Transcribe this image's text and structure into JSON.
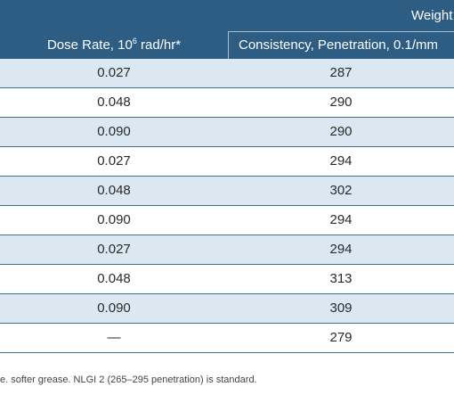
{
  "header": {
    "group_label": "Weight",
    "dose_label": "Dose Rate, 10",
    "dose_exponent": "6",
    "dose_unit": " rad/hr*",
    "consistency_label": "Consistency, Penetration, 0.1/mm"
  },
  "rows": [
    {
      "dose": "0.027",
      "penetration": "287"
    },
    {
      "dose": "0.048",
      "penetration": "290"
    },
    {
      "dose": "0.090",
      "penetration": "290"
    },
    {
      "dose": "0.027",
      "penetration": "294"
    },
    {
      "dose": "0.048",
      "penetration": "302"
    },
    {
      "dose": "0.090",
      "penetration": "294"
    },
    {
      "dose": "0.027",
      "penetration": "294"
    },
    {
      "dose": "0.048",
      "penetration": "313"
    },
    {
      "dose": "0.090",
      "penetration": "309"
    },
    {
      "dose": "—",
      "penetration": "279"
    }
  ],
  "footnote": "e. softer grease. NLGI 2 (265–295 penetration) is standard.",
  "colors": {
    "header_bg": "#2d5d83",
    "row_alt_bg": "#dbe8f2",
    "row_border": "#3d6f95"
  }
}
